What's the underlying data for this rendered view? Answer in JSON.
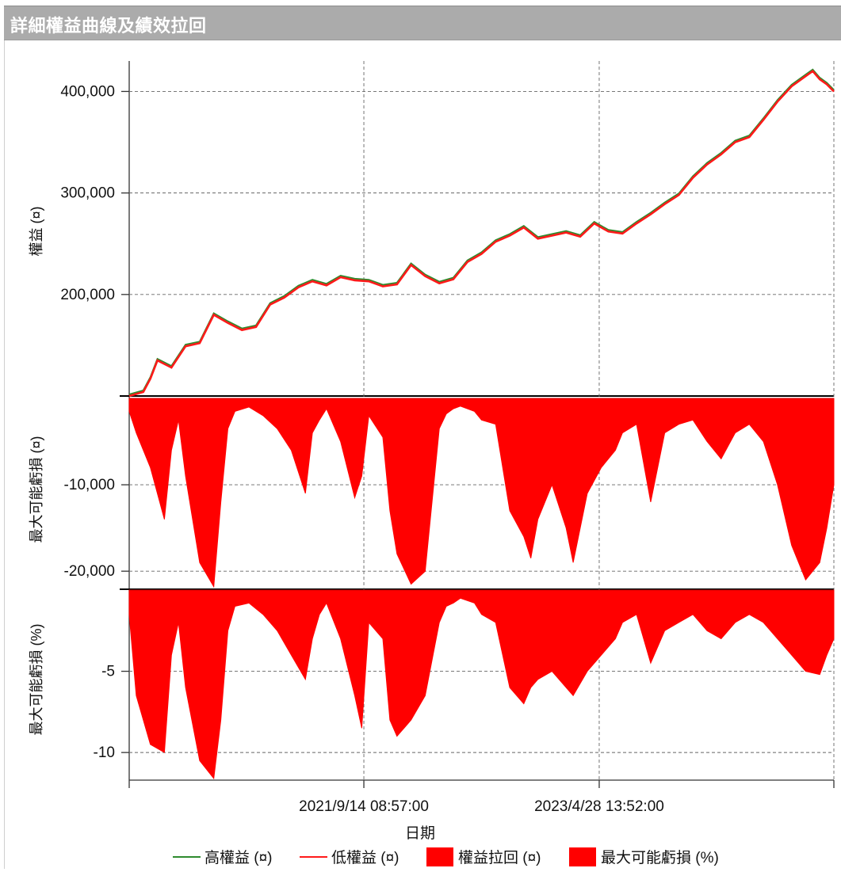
{
  "window": {
    "title": "詳細權益曲線及績效拉回"
  },
  "chart_data": [
    {
      "type": "line",
      "ylabel": "權益 (¤)",
      "yticks": [
        400000,
        300000,
        200000
      ],
      "yticks_text": [
        "400,000",
        "300,000",
        "200,000"
      ],
      "ylim": [
        100000,
        430000
      ],
      "xlim": [
        0,
        100
      ],
      "series": [
        {
          "name": "高權益 (¤)",
          "color": "#2e8b2e"
        },
        {
          "name": "低權益 (¤)",
          "color": "#ff1a1a"
        }
      ],
      "x": [
        0,
        2,
        3,
        4,
        6,
        8,
        10,
        12,
        14,
        16,
        18,
        20,
        22,
        24,
        26,
        28,
        30,
        32,
        34,
        36,
        38,
        40,
        42,
        44,
        46,
        48,
        50,
        52,
        54,
        56,
        58,
        60,
        62,
        64,
        66,
        68,
        70,
        72,
        74,
        76,
        78,
        80,
        82,
        84,
        86,
        88,
        90,
        92,
        94,
        96,
        97,
        98,
        99,
        100
      ],
      "values": [
        100000,
        104000,
        117000,
        135000,
        128000,
        149000,
        152000,
        180000,
        172000,
        165000,
        168000,
        190000,
        197000,
        207000,
        213000,
        209000,
        217000,
        214000,
        213000,
        208000,
        210000,
        229000,
        218000,
        211000,
        215000,
        232000,
        240000,
        252000,
        258000,
        266000,
        255000,
        258000,
        261000,
        257000,
        270000,
        262000,
        260000,
        270000,
        279000,
        289000,
        298000,
        315000,
        328000,
        338000,
        350000,
        355000,
        372000,
        390000,
        405000,
        415000,
        420000,
        412000,
        407000,
        400000
      ]
    },
    {
      "type": "area",
      "ylabel": "最大可能虧損 (¤)",
      "yticks": [
        -10000,
        -20000
      ],
      "yticks_text": [
        "-10,000",
        "-20,000"
      ],
      "ylim": [
        -22000,
        0
      ],
      "series": [
        {
          "name": "權益拉回 (¤)",
          "color": "#ff0000"
        }
      ],
      "x": [
        0,
        1,
        3,
        5,
        6,
        7,
        8,
        10,
        12,
        13,
        14,
        15,
        17,
        19,
        21,
        23,
        25,
        26,
        27,
        28,
        30,
        32,
        33,
        34,
        36,
        37,
        38,
        40,
        42,
        44,
        45,
        46,
        47,
        49,
        50,
        52,
        54,
        56,
        57,
        58,
        60,
        62,
        63,
        65,
        67,
        69,
        70,
        72,
        74,
        76,
        78,
        80,
        82,
        84,
        86,
        88,
        90,
        92,
        94,
        96,
        98,
        99,
        100
      ],
      "values": [
        -1500,
        -4000,
        -8000,
        -14000,
        -6000,
        -2500,
        -9000,
        -19000,
        -21800,
        -12000,
        -3500,
        -1500,
        -1000,
        -2000,
        -3500,
        -6000,
        -11000,
        -4000,
        -2500,
        -1200,
        -5000,
        -11500,
        -9000,
        -2000,
        -4500,
        -13000,
        -18000,
        -21500,
        -20000,
        -3500,
        -1800,
        -1200,
        -900,
        -1500,
        -2500,
        -3000,
        -13000,
        -16000,
        -18500,
        -14000,
        -10000,
        -15000,
        -19000,
        -11000,
        -8000,
        -6000,
        -4000,
        -3000,
        -12000,
        -4000,
        -3000,
        -2500,
        -5000,
        -7000,
        -4000,
        -3000,
        -5000,
        -10000,
        -17000,
        -21000,
        -19000,
        -15000,
        -10000
      ]
    },
    {
      "type": "area",
      "ylabel": "最大可能虧損 (%)",
      "yticks": [
        -5,
        -10
      ],
      "yticks_text": [
        "-5",
        "-10"
      ],
      "ylim": [
        -11.7,
        0
      ],
      "series": [
        {
          "name": "最大可能虧損 (%)",
          "color": "#ff0000"
        }
      ],
      "x": [
        0,
        1,
        3,
        5,
        6,
        7,
        8,
        10,
        12,
        13,
        14,
        15,
        17,
        19,
        21,
        23,
        25,
        26,
        27,
        28,
        30,
        32,
        33,
        34,
        36,
        37,
        38,
        40,
        42,
        44,
        45,
        46,
        47,
        49,
        50,
        52,
        54,
        56,
        57,
        58,
        60,
        62,
        63,
        65,
        67,
        69,
        70,
        72,
        74,
        76,
        78,
        80,
        82,
        84,
        86,
        88,
        90,
        92,
        94,
        96,
        98,
        99,
        100
      ],
      "values": [
        -1.5,
        -6.5,
        -9.5,
        -10.0,
        -4.0,
        -2.0,
        -6.0,
        -10.5,
        -11.6,
        -8.0,
        -2.5,
        -1.0,
        -0.8,
        -1.5,
        -2.5,
        -4.0,
        -5.5,
        -3.0,
        -1.5,
        -0.8,
        -3.0,
        -6.5,
        -8.5,
        -2.0,
        -3.0,
        -8.0,
        -9.0,
        -8.0,
        -6.5,
        -2.0,
        -1.0,
        -0.8,
        -0.5,
        -0.8,
        -1.5,
        -2.0,
        -6.0,
        -7.0,
        -6.0,
        -5.5,
        -5.0,
        -6.0,
        -6.5,
        -5.0,
        -4.0,
        -3.0,
        -2.0,
        -1.5,
        -4.5,
        -2.5,
        -2.0,
        -1.5,
        -2.5,
        -3.0,
        -2.0,
        -1.5,
        -2.0,
        -3.0,
        -4.0,
        -5.0,
        -5.2,
        -4.0,
        -3.0
      ]
    }
  ],
  "x_axis": {
    "label": "日期",
    "ticks": [
      {
        "pos": 0,
        "text": ""
      },
      {
        "pos": 33.3,
        "text": "2021/9/14 08:57:00"
      },
      {
        "pos": 66.7,
        "text": "2023/4/28 13:52:00"
      },
      {
        "pos": 100,
        "text": ""
      }
    ]
  },
  "legend": {
    "position": "bottom",
    "items": [
      {
        "label": "高權益 (¤)",
        "kind": "line",
        "color": "#2e8b2e"
      },
      {
        "label": "低權益 (¤)",
        "kind": "line",
        "color": "#ff1a1a"
      },
      {
        "label": "權益拉回 (¤)",
        "kind": "box",
        "color": "#ff0000"
      },
      {
        "label": "最大可能虧損 (%)",
        "kind": "box",
        "color": "#ff0000"
      }
    ]
  },
  "grid": true
}
